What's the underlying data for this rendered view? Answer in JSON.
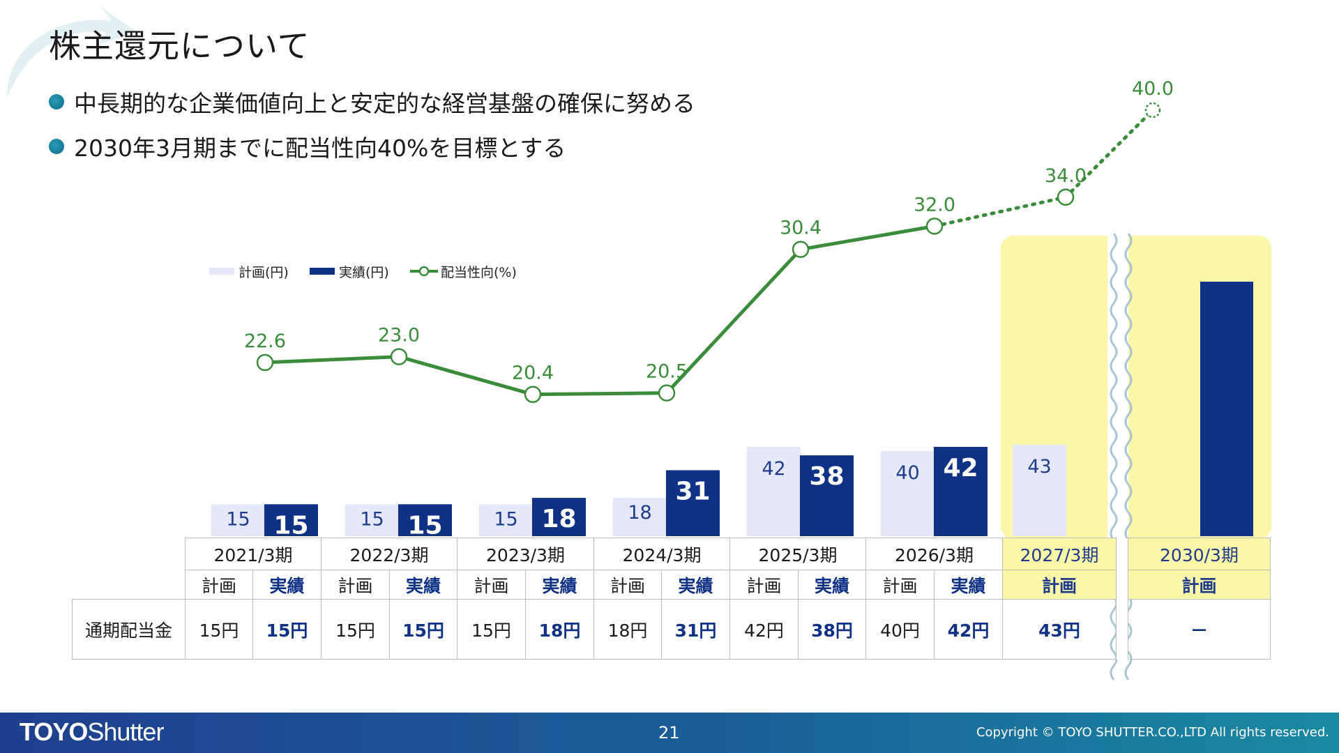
{
  "header": {
    "title": "株主還元について",
    "bullets": [
      "中長期的な企業価値向上と安定的な経営基盤の確保に努める",
      "2030年3月期までに配当性向40%を目標とする"
    ]
  },
  "chart_data": {
    "type": "bar",
    "categories": [
      "2021/3期",
      "2022/3期",
      "2023/3期",
      "2024/3期",
      "2025/3期",
      "2026/3期",
      "2027/3期",
      "2030/3期"
    ],
    "series": [
      {
        "name": "計画(円)",
        "values": [
          15,
          15,
          15,
          18,
          42,
          40,
          43,
          null
        ],
        "color": "#e4e8f8"
      },
      {
        "name": "実績(円)",
        "values": [
          15,
          15,
          18,
          31,
          38,
          42,
          null,
          null
        ],
        "color": "#0f3286"
      },
      {
        "name": "配当性向(%)",
        "type": "line",
        "values": [
          22.6,
          23.0,
          20.4,
          20.5,
          30.4,
          32.0,
          34.0,
          40.0
        ],
        "color": "#3a8c3a"
      }
    ],
    "target_bar_2030": {
      "series": "計画",
      "value": null
    },
    "legend_position": "top-left",
    "highlight_categories": [
      "2027/3期",
      "2030/3期"
    ],
    "highlight_color": "#fbf7a8"
  },
  "table": {
    "periods": [
      "2021/3期",
      "2022/3期",
      "2023/3期",
      "2024/3期",
      "2025/3期",
      "2026/3期",
      "2027/3期",
      "2030/3期"
    ],
    "plan_label": "計画",
    "actual_label": "実績",
    "row_label": "通期配当金",
    "plan_values": [
      "15円",
      "15円",
      "15円",
      "18円",
      "42円",
      "40円",
      "43円",
      "－"
    ],
    "actual_values": [
      "15円",
      "15円",
      "18円",
      "31円",
      "38円",
      "42円"
    ]
  },
  "footer": {
    "logo_bold": "TOYO",
    "logo_rest": "Shutter",
    "page": "21",
    "copyright": "Copyright © TOYO SHUTTER.CO.,LTD All rights reserved."
  }
}
